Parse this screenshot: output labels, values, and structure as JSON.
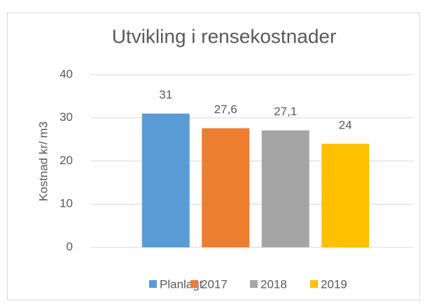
{
  "chart_data": {
    "type": "bar",
    "title": "Utvikling i rensekostnader",
    "y_label": "Kostnad kr/ m3",
    "categories": [
      null
    ],
    "series": [
      {
        "name": "Planlagt",
        "color": "#5b9bd5",
        "values": [
          31
        ]
      },
      {
        "name": "2017",
        "color": "#ed7d31",
        "values": [
          27.6
        ],
        "value_labels": [
          "27,6"
        ]
      },
      {
        "name": "2018",
        "color": "#a5a5a5",
        "values": [
          27.1
        ],
        "value_labels": [
          "27,1"
        ]
      },
      {
        "name": "2019",
        "color": "#ffc000",
        "values": [
          24
        ]
      }
    ],
    "ylim": [
      0,
      40
    ],
    "yticks": [
      0,
      10,
      20,
      30,
      40
    ],
    "grid": true,
    "legend": "bottom"
  }
}
